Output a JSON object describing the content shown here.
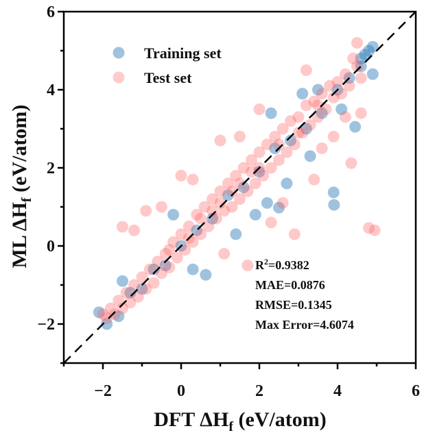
{
  "chart_data": {
    "type": "scatter",
    "xlabel": {
      "prefix": "DFT ΔH",
      "sub": "f",
      "suffix": " (eV/atom)"
    },
    "ylabel": {
      "prefix": "ML ΔH",
      "sub": "f",
      "suffix": " (eV/atom)"
    },
    "xlim": [
      -3,
      6
    ],
    "ylim": [
      -3,
      6
    ],
    "xticks": [
      "−2",
      "0",
      "2",
      "4",
      "6"
    ],
    "yticks": [
      "−2",
      "0",
      "2",
      "4",
      "6"
    ],
    "xtick_values": [
      -2,
      0,
      2,
      4,
      6
    ],
    "ytick_values": [
      -2,
      0,
      2,
      4,
      6
    ],
    "grid": false,
    "legend_position": "top-left",
    "reference_line": {
      "style": "dashed",
      "color": "#000000",
      "equation": "y = x"
    },
    "annotations": {
      "r2_label": "R",
      "r2_sup": "2",
      "r2_value": "=0.9382",
      "mae": "MAE=0.0876",
      "rmse": "RMSE=0.1345",
      "max_error": "Max Error=4.6074"
    },
    "series": [
      {
        "name": "Training set",
        "color": "#2b7bb9",
        "points": [
          [
            -2.1,
            -1.7
          ],
          [
            -1.9,
            -2.0
          ],
          [
            -1.6,
            -1.8
          ],
          [
            -1.3,
            -1.2
          ],
          [
            -1.0,
            -1.1
          ],
          [
            -0.7,
            -0.6
          ],
          [
            -0.4,
            -0.5
          ],
          [
            0,
            0
          ],
          [
            0.4,
            0.4
          ],
          [
            0.8,
            0.7
          ],
          [
            1.2,
            1.3
          ],
          [
            1.6,
            1.5
          ],
          [
            2.0,
            1.9
          ],
          [
            2.4,
            2.5
          ],
          [
            2.8,
            2.7
          ],
          [
            3.2,
            3.0
          ],
          [
            3.6,
            3.4
          ],
          [
            4.0,
            4.0
          ],
          [
            4.3,
            4.3
          ],
          [
            4.6,
            4.6
          ],
          [
            4.7,
            4.9
          ],
          [
            4.9,
            5.1
          ],
          [
            4.8,
            5.0
          ],
          [
            4.6,
            4.8
          ],
          [
            4.9,
            4.4
          ],
          [
            4.45,
            3.05
          ],
          [
            3.9,
            1.37
          ],
          [
            3.91,
            1.05
          ],
          [
            2.5,
            0.98
          ],
          [
            0.63,
            -0.74
          ],
          [
            2.3,
            3.4
          ],
          [
            3.5,
            4.0
          ],
          [
            2.2,
            1.1
          ],
          [
            1.4,
            0.3
          ],
          [
            3.3,
            2.3
          ],
          [
            2.7,
            1.6
          ],
          [
            0.3,
            -0.6
          ],
          [
            1.9,
            0.8
          ],
          [
            3.1,
            3.9
          ],
          [
            4.1,
            3.5
          ],
          [
            -1.5,
            -0.9
          ],
          [
            -0.2,
            0.8
          ]
        ]
      },
      {
        "name": "Test set",
        "color": "#ff5a5a",
        "points": [
          [
            -2.0,
            -1.75
          ],
          [
            -1.9,
            -1.85
          ],
          [
            -1.8,
            -1.6
          ],
          [
            -1.7,
            -1.75
          ],
          [
            -1.6,
            -1.4
          ],
          [
            -1.5,
            -1.6
          ],
          [
            -1.4,
            -1.2
          ],
          [
            -1.3,
            -1.45
          ],
          [
            -1.2,
            -1.0
          ],
          [
            -1.1,
            -1.3
          ],
          [
            -1.0,
            -0.8
          ],
          [
            -0.9,
            -1.1
          ],
          [
            -0.8,
            -0.6
          ],
          [
            -0.7,
            -0.95
          ],
          [
            -0.6,
            -0.4
          ],
          [
            -0.5,
            -0.7
          ],
          [
            -0.4,
            -0.2
          ],
          [
            -0.3,
            -0.55
          ],
          [
            -0.2,
            0.1
          ],
          [
            -0.1,
            -0.3
          ],
          [
            0,
            0.3
          ],
          [
            0.1,
            -0.1
          ],
          [
            0.2,
            0.5
          ],
          [
            0.3,
            0.1
          ],
          [
            0.4,
            0.8
          ],
          [
            0.5,
            0.3
          ],
          [
            0.6,
            1.0
          ],
          [
            0.7,
            0.5
          ],
          [
            0.8,
            1.2
          ],
          [
            0.9,
            0.7
          ],
          [
            1.0,
            1.4
          ],
          [
            1.1,
            0.9
          ],
          [
            1.2,
            1.6
          ],
          [
            1.3,
            1.0
          ],
          [
            1.4,
            1.8
          ],
          [
            1.5,
            1.2
          ],
          [
            1.6,
            2.0
          ],
          [
            1.7,
            1.4
          ],
          [
            1.8,
            2.2
          ],
          [
            1.9,
            1.6
          ],
          [
            2.0,
            2.4
          ],
          [
            2.1,
            1.8
          ],
          [
            2.2,
            2.6
          ],
          [
            2.3,
            2.0
          ],
          [
            2.4,
            2.8
          ],
          [
            2.5,
            2.2
          ],
          [
            2.6,
            3.0
          ],
          [
            2.7,
            2.4
          ],
          [
            2.8,
            3.2
          ],
          [
            2.9,
            2.6
          ],
          [
            3.0,
            3.3
          ],
          [
            3.1,
            2.9
          ],
          [
            3.2,
            3.6
          ],
          [
            3.3,
            3.1
          ],
          [
            3.4,
            3.7
          ],
          [
            3.5,
            3.3
          ],
          [
            3.6,
            3.9
          ],
          [
            3.7,
            3.5
          ],
          [
            3.8,
            4.1
          ],
          [
            3.9,
            3.8
          ],
          [
            4.0,
            4.2
          ],
          [
            4.1,
            3.9
          ],
          [
            4.2,
            4.4
          ],
          [
            4.3,
            4.1
          ],
          [
            4.5,
            4.6
          ],
          [
            4.6,
            4.3
          ],
          [
            4.4,
            4.8
          ],
          [
            4.5,
            5.2
          ],
          [
            4.95,
            0.4
          ],
          [
            4.8,
            0.46
          ],
          [
            4.35,
            2.12
          ],
          [
            -1.5,
            0.49
          ],
          [
            -1.2,
            0.4
          ],
          [
            -0.9,
            0.9
          ],
          [
            -0.5,
            1.0
          ],
          [
            0.0,
            1.8
          ],
          [
            0.3,
            1.7
          ],
          [
            1.0,
            2.7
          ],
          [
            1.5,
            2.8
          ],
          [
            2.3,
            0.6
          ],
          [
            1.7,
            -0.5
          ],
          [
            2.9,
            0.3
          ],
          [
            3.4,
            1.7
          ],
          [
            3.6,
            2.5
          ],
          [
            3.9,
            2.8
          ],
          [
            4.6,
            3.4
          ],
          [
            2.6,
            1.1
          ],
          [
            1.1,
            -0.2
          ],
          [
            2.0,
            3.5
          ],
          [
            3.2,
            4.5
          ],
          [
            4.2,
            3.3
          ],
          [
            0.5,
            0.7
          ],
          [
            1.0,
            1.1
          ],
          [
            1.5,
            1.6
          ],
          [
            2.0,
            2.0
          ],
          [
            0.8,
            0.9
          ],
          [
            1.3,
            1.4
          ],
          [
            1.8,
            1.9
          ],
          [
            2.5,
            2.6
          ],
          [
            0.2,
            0.2
          ],
          [
            -0.3,
            -0.1
          ],
          [
            3.0,
            2.9
          ],
          [
            3.5,
            3.6
          ]
        ]
      }
    ]
  }
}
